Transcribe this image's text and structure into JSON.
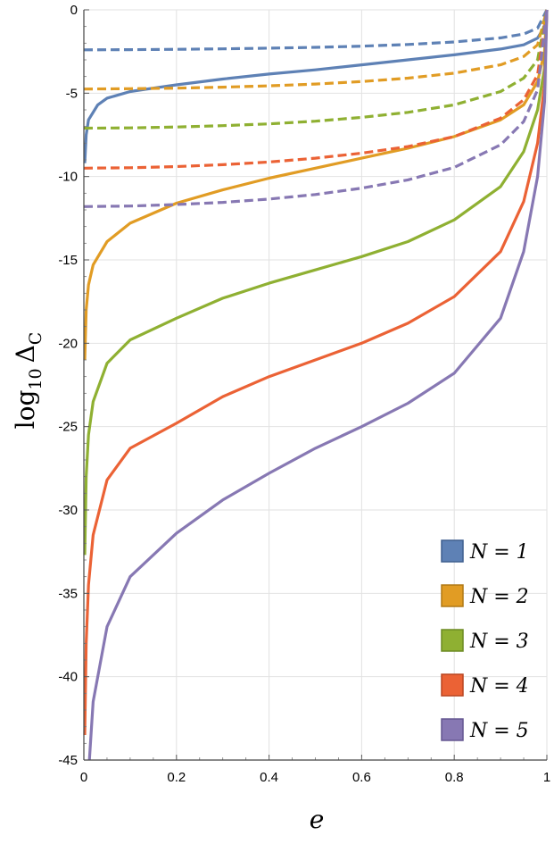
{
  "chart_data": {
    "type": "line",
    "xlabel": "e",
    "ylabel": {
      "main": "log",
      "sub": "10",
      "symbol": "Δ",
      "symbol_sub": "C"
    },
    "xlim": [
      0,
      1
    ],
    "ylim": [
      -45,
      0
    ],
    "x_ticks": [
      "0",
      "0.2",
      "0.4",
      "0.6",
      "0.8",
      "1"
    ],
    "y_ticks": [
      "0",
      "-5",
      "-10",
      "-15",
      "-20",
      "-25",
      "-30",
      "-35",
      "-40",
      "-45"
    ],
    "grid": true,
    "legend_position": "bottom-right",
    "series": [
      {
        "name": "N = 1",
        "color": "#5E81B5",
        "style": "solid",
        "points": [
          [
            0.002,
            -9.2
          ],
          [
            0.005,
            -7.5
          ],
          [
            0.01,
            -6.6
          ],
          [
            0.03,
            -5.7
          ],
          [
            0.05,
            -5.3
          ],
          [
            0.1,
            -4.9
          ],
          [
            0.15,
            -4.7
          ],
          [
            0.2,
            -4.5
          ],
          [
            0.3,
            -4.15
          ],
          [
            0.4,
            -3.85
          ],
          [
            0.5,
            -3.6
          ],
          [
            0.6,
            -3.3
          ],
          [
            0.7,
            -3.0
          ],
          [
            0.8,
            -2.7
          ],
          [
            0.9,
            -2.35
          ],
          [
            0.95,
            -2.1
          ],
          [
            0.98,
            -1.7
          ],
          [
            0.995,
            -1.0
          ],
          [
            1.0,
            0
          ]
        ]
      },
      {
        "name": "N = 1 (dashed)",
        "color": "#5E81B5",
        "style": "dashed",
        "points": [
          [
            0.0,
            -2.4
          ],
          [
            0.1,
            -2.39
          ],
          [
            0.2,
            -2.37
          ],
          [
            0.3,
            -2.34
          ],
          [
            0.4,
            -2.3
          ],
          [
            0.5,
            -2.25
          ],
          [
            0.6,
            -2.18
          ],
          [
            0.7,
            -2.08
          ],
          [
            0.8,
            -1.93
          ],
          [
            0.9,
            -1.68
          ],
          [
            0.95,
            -1.45
          ],
          [
            0.98,
            -1.1
          ],
          [
            1.0,
            0
          ]
        ]
      },
      {
        "name": "N = 2",
        "color": "#E19C24",
        "style": "solid",
        "points": [
          [
            0.002,
            -21.0
          ],
          [
            0.005,
            -18.0
          ],
          [
            0.01,
            -16.5
          ],
          [
            0.02,
            -15.3
          ],
          [
            0.05,
            -13.9
          ],
          [
            0.1,
            -12.8
          ],
          [
            0.2,
            -11.6
          ],
          [
            0.3,
            -10.8
          ],
          [
            0.4,
            -10.1
          ],
          [
            0.5,
            -9.5
          ],
          [
            0.6,
            -8.9
          ],
          [
            0.7,
            -8.3
          ],
          [
            0.8,
            -7.6
          ],
          [
            0.9,
            -6.6
          ],
          [
            0.95,
            -5.7
          ],
          [
            0.98,
            -4.3
          ],
          [
            0.995,
            -2.5
          ],
          [
            1.0,
            0
          ]
        ]
      },
      {
        "name": "N = 2 (dashed)",
        "color": "#E19C24",
        "style": "dashed",
        "points": [
          [
            0.0,
            -4.75
          ],
          [
            0.1,
            -4.73
          ],
          [
            0.2,
            -4.7
          ],
          [
            0.3,
            -4.64
          ],
          [
            0.4,
            -4.56
          ],
          [
            0.5,
            -4.45
          ],
          [
            0.6,
            -4.3
          ],
          [
            0.7,
            -4.1
          ],
          [
            0.8,
            -3.8
          ],
          [
            0.9,
            -3.3
          ],
          [
            0.95,
            -2.8
          ],
          [
            0.98,
            -2.1
          ],
          [
            1.0,
            0
          ]
        ]
      },
      {
        "name": "N = 3",
        "color": "#8FB032",
        "style": "solid",
        "points": [
          [
            0.002,
            -32.7
          ],
          [
            0.005,
            -28.0
          ],
          [
            0.01,
            -25.5
          ],
          [
            0.02,
            -23.5
          ],
          [
            0.05,
            -21.2
          ],
          [
            0.1,
            -19.8
          ],
          [
            0.2,
            -18.5
          ],
          [
            0.3,
            -17.3
          ],
          [
            0.4,
            -16.4
          ],
          [
            0.5,
            -15.6
          ],
          [
            0.6,
            -14.8
          ],
          [
            0.7,
            -13.9
          ],
          [
            0.8,
            -12.6
          ],
          [
            0.9,
            -10.6
          ],
          [
            0.95,
            -8.5
          ],
          [
            0.98,
            -6.0
          ],
          [
            0.995,
            -3.5
          ],
          [
            1.0,
            0
          ]
        ]
      },
      {
        "name": "N = 3 (dashed)",
        "color": "#8FB032",
        "style": "dashed",
        "points": [
          [
            0.0,
            -7.1
          ],
          [
            0.1,
            -7.08
          ],
          [
            0.2,
            -7.03
          ],
          [
            0.3,
            -6.95
          ],
          [
            0.4,
            -6.84
          ],
          [
            0.5,
            -6.68
          ],
          [
            0.6,
            -6.45
          ],
          [
            0.7,
            -6.15
          ],
          [
            0.8,
            -5.7
          ],
          [
            0.9,
            -4.9
          ],
          [
            0.95,
            -4.1
          ],
          [
            0.98,
            -3.0
          ],
          [
            1.0,
            0
          ]
        ]
      },
      {
        "name": "N = 4",
        "color": "#EB6235",
        "style": "solid",
        "points": [
          [
            0.002,
            -43.5
          ],
          [
            0.005,
            -38.0
          ],
          [
            0.01,
            -34.5
          ],
          [
            0.02,
            -31.5
          ],
          [
            0.05,
            -28.2
          ],
          [
            0.1,
            -26.3
          ],
          [
            0.2,
            -24.8
          ],
          [
            0.3,
            -23.2
          ],
          [
            0.4,
            -22.0
          ],
          [
            0.5,
            -21.0
          ],
          [
            0.6,
            -20.0
          ],
          [
            0.7,
            -18.8
          ],
          [
            0.8,
            -17.2
          ],
          [
            0.9,
            -14.5
          ],
          [
            0.95,
            -11.5
          ],
          [
            0.98,
            -8.0
          ],
          [
            0.995,
            -4.5
          ],
          [
            1.0,
            0
          ]
        ]
      },
      {
        "name": "N = 4 (dashed)",
        "color": "#EB6235",
        "style": "dashed",
        "points": [
          [
            0.0,
            -9.5
          ],
          [
            0.1,
            -9.47
          ],
          [
            0.2,
            -9.4
          ],
          [
            0.3,
            -9.29
          ],
          [
            0.4,
            -9.13
          ],
          [
            0.5,
            -8.9
          ],
          [
            0.6,
            -8.6
          ],
          [
            0.7,
            -8.2
          ],
          [
            0.8,
            -7.6
          ],
          [
            0.9,
            -6.5
          ],
          [
            0.95,
            -5.4
          ],
          [
            0.98,
            -3.9
          ],
          [
            1.0,
            0
          ]
        ]
      },
      {
        "name": "N = 5",
        "color": "#8778B3",
        "style": "solid",
        "points": [
          [
            0.012,
            -45.0
          ],
          [
            0.02,
            -41.5
          ],
          [
            0.05,
            -37.0
          ],
          [
            0.1,
            -34.0
          ],
          [
            0.2,
            -31.4
          ],
          [
            0.3,
            -29.4
          ],
          [
            0.4,
            -27.8
          ],
          [
            0.5,
            -26.3
          ],
          [
            0.6,
            -25.0
          ],
          [
            0.7,
            -23.6
          ],
          [
            0.8,
            -21.8
          ],
          [
            0.9,
            -18.5
          ],
          [
            0.95,
            -14.5
          ],
          [
            0.98,
            -10.0
          ],
          [
            0.995,
            -5.5
          ],
          [
            1.0,
            0
          ]
        ]
      },
      {
        "name": "N = 5 (dashed)",
        "color": "#8778B3",
        "style": "dashed",
        "points": [
          [
            0.0,
            -11.8
          ],
          [
            0.1,
            -11.77
          ],
          [
            0.2,
            -11.68
          ],
          [
            0.3,
            -11.55
          ],
          [
            0.4,
            -11.35
          ],
          [
            0.5,
            -11.08
          ],
          [
            0.6,
            -10.7
          ],
          [
            0.7,
            -10.2
          ],
          [
            0.8,
            -9.45
          ],
          [
            0.9,
            -8.1
          ],
          [
            0.95,
            -6.7
          ],
          [
            0.98,
            -4.8
          ],
          [
            1.0,
            0
          ]
        ]
      }
    ],
    "legend": [
      {
        "label": "N = 1",
        "color": "#5E81B5",
        "border": "#3F5F8F"
      },
      {
        "label": "N = 2",
        "color": "#E19C24",
        "border": "#B07815"
      },
      {
        "label": "N = 3",
        "color": "#8FB032",
        "border": "#6B8A22"
      },
      {
        "label": "N = 4",
        "color": "#EB6235",
        "border": "#B94520"
      },
      {
        "label": "N = 5",
        "color": "#8778B3",
        "border": "#645690"
      }
    ]
  }
}
